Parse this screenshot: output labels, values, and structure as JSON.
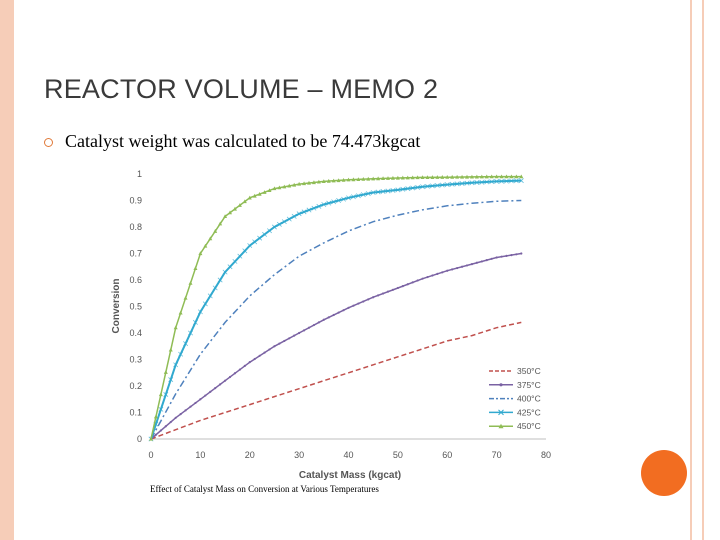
{
  "slide": {
    "title": "REACTOR VOLUME – MEMO 2",
    "bullet": "Catalyst weight was calculated to be 74.473kgcat",
    "caption": "Effect of Catalyst Mass on Conversion at Various Temperatures",
    "accent_color": "#f26d21",
    "frame_color": "#f6cdb8"
  },
  "chart_data": {
    "type": "line",
    "xlabel": "Catalyst Mass (kgcat)",
    "ylabel": "Conversion",
    "xlim": [
      0,
      80
    ],
    "ylim": [
      0,
      1
    ],
    "xticks": [
      0,
      10,
      20,
      30,
      40,
      50,
      60,
      70,
      80
    ],
    "yticks": [
      0,
      0.1,
      0.2,
      0.3,
      0.4,
      0.5,
      0.6,
      0.7,
      0.8,
      0.9,
      1
    ],
    "grid": false,
    "legend_position": "bottom-right",
    "x": [
      0,
      5,
      10,
      15,
      20,
      25,
      30,
      35,
      40,
      45,
      50,
      55,
      60,
      65,
      70,
      75
    ],
    "series": [
      {
        "name": "350°C",
        "color": "#c0504d",
        "style": "dashed",
        "marker": "none",
        "values": [
          0,
          0.035,
          0.07,
          0.1,
          0.13,
          0.16,
          0.19,
          0.22,
          0.25,
          0.28,
          0.31,
          0.34,
          0.37,
          0.39,
          0.42,
          0.44
        ]
      },
      {
        "name": "375°C",
        "color": "#7a62a3",
        "style": "solid",
        "marker": "dot",
        "values": [
          0,
          0.08,
          0.15,
          0.22,
          0.29,
          0.35,
          0.4,
          0.45,
          0.495,
          0.535,
          0.57,
          0.605,
          0.635,
          0.66,
          0.685,
          0.7
        ]
      },
      {
        "name": "400°C",
        "color": "#4f81bd",
        "style": "dashdot",
        "marker": "none",
        "values": [
          0,
          0.17,
          0.32,
          0.44,
          0.54,
          0.62,
          0.69,
          0.74,
          0.785,
          0.82,
          0.845,
          0.865,
          0.88,
          0.89,
          0.897,
          0.9
        ]
      },
      {
        "name": "425°C",
        "color": "#31a9cf",
        "style": "solid",
        "marker": "x",
        "values": [
          0,
          0.28,
          0.48,
          0.63,
          0.73,
          0.8,
          0.85,
          0.885,
          0.91,
          0.93,
          0.94,
          0.952,
          0.96,
          0.967,
          0.972,
          0.975
        ]
      },
      {
        "name": "450°C",
        "color": "#8fbc55",
        "style": "solid",
        "marker": "triangle",
        "values": [
          0,
          0.42,
          0.7,
          0.84,
          0.91,
          0.945,
          0.962,
          0.972,
          0.978,
          0.982,
          0.985,
          0.987,
          0.988,
          0.989,
          0.99,
          0.99
        ]
      }
    ]
  }
}
